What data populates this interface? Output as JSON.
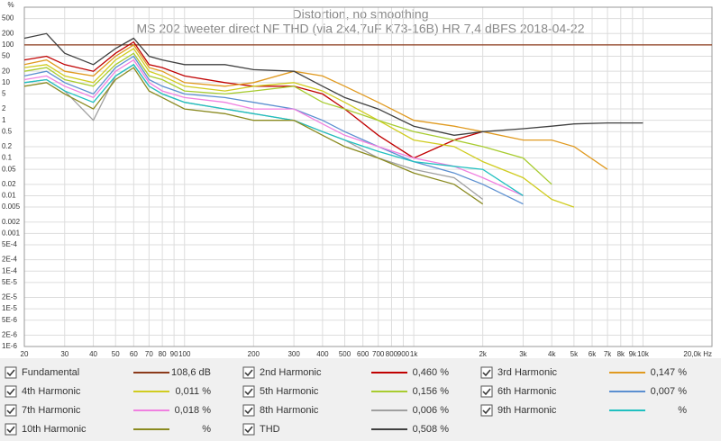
{
  "chart_data": {
    "type": "line",
    "log_x": true,
    "log_y": true,
    "grid": true,
    "title": "Distortion, no smoothing",
    "subtitle": "MS 202 tweeter direct NF THD (via 2x4,7uF K73-16B) HR 7,4 dBFS 2018-04-22",
    "y_label": "%",
    "xlim": [
      20,
      20000
    ],
    "ylim": [
      1e-06,
      1000
    ],
    "xticks": [
      20,
      30,
      40,
      50,
      60,
      70,
      80,
      90,
      100,
      200,
      300,
      400,
      500,
      600,
      700,
      800,
      900,
      {
        "value": 1000,
        "label": "1k"
      },
      {
        "value": 2000,
        "label": "2k"
      },
      {
        "value": 3000,
        "label": "3k"
      },
      {
        "value": 4000,
        "label": "4k"
      },
      {
        "value": 5000,
        "label": "5k"
      },
      {
        "value": 6000,
        "label": "6k"
      },
      {
        "value": 7000,
        "label": "7k"
      },
      {
        "value": 8000,
        "label": "8k"
      },
      {
        "value": 9000,
        "label": "9k"
      },
      {
        "value": 10000,
        "label": "10k"
      },
      {
        "value": 20000,
        "label": "20,0k Hz"
      }
    ],
    "yticks": [
      500,
      200,
      100,
      50,
      20,
      10,
      5,
      2,
      1,
      0.5,
      0.2,
      0.1,
      0.05,
      0.02,
      0.01,
      0.005,
      0.002,
      0.001,
      {
        "value": 0.0005,
        "label": "5E-4"
      },
      {
        "value": 0.0002,
        "label": "2E-4"
      },
      {
        "value": 0.0001,
        "label": "1E-4"
      },
      {
        "value": 5e-05,
        "label": "5E-5"
      },
      {
        "value": 2e-05,
        "label": "2E-5"
      },
      {
        "value": 1e-05,
        "label": "1E-5"
      },
      {
        "value": 5e-06,
        "label": "5E-6"
      },
      {
        "value": 2e-06,
        "label": "2E-6"
      },
      {
        "value": 1e-06,
        "label": "1E-6"
      }
    ],
    "x": [
      20,
      25,
      30,
      40,
      50,
      60,
      70,
      80,
      100,
      150,
      200,
      300,
      400,
      500,
      700,
      1000,
      1500,
      2000,
      3000,
      4000,
      5000,
      7000,
      10000,
      20000
    ],
    "series": [
      {
        "name": "Fundamental",
        "color": "#8b3a1a",
        "legend_value": "108,6 dB",
        "values": [
          100,
          100,
          100,
          100,
          100,
          100,
          100,
          100,
          100,
          100,
          100,
          100,
          100,
          100,
          100,
          100,
          100,
          100,
          100,
          100,
          100,
          100,
          100,
          100
        ]
      },
      {
        "name": "2nd Harmonic",
        "color": "#c00000",
        "legend_value": "0,460 %",
        "values": [
          40,
          50,
          30,
          20,
          60,
          120,
          30,
          25,
          15,
          10,
          8,
          8,
          5,
          2,
          0.4,
          0.1,
          0.3,
          0.5,
          null,
          null,
          null,
          null,
          null,
          null
        ]
      },
      {
        "name": "3rd Harmonic",
        "color": "#e09a20",
        "legend_value": "0,147 %",
        "values": [
          30,
          40,
          20,
          15,
          50,
          100,
          25,
          20,
          10,
          8,
          10,
          20,
          15,
          8,
          3,
          1,
          0.7,
          0.5,
          0.3,
          0.3,
          0.2,
          0.05,
          null,
          null
        ]
      },
      {
        "name": "4th Harmonic",
        "color": "#d0cc20",
        "legend_value": "0,011 %",
        "values": [
          25,
          30,
          15,
          10,
          40,
          80,
          20,
          15,
          8,
          6,
          8,
          10,
          6,
          3,
          1,
          0.3,
          0.2,
          0.08,
          0.03,
          0.008,
          0.005,
          null,
          null,
          null
        ]
      },
      {
        "name": "5th Harmonic",
        "color": "#a8cc30",
        "legend_value": "0,156 %",
        "values": [
          20,
          25,
          12,
          8,
          30,
          60,
          15,
          12,
          6,
          5,
          6,
          8,
          3,
          2,
          1,
          0.5,
          0.3,
          0.2,
          0.1,
          0.02,
          null,
          null,
          null,
          null
        ]
      },
      {
        "name": "6th Harmonic",
        "color": "#5b8fd0",
        "legend_value": "0,007 %",
        "values": [
          15,
          20,
          10,
          5,
          25,
          50,
          12,
          8,
          5,
          4,
          3,
          2,
          1,
          0.5,
          0.2,
          0.08,
          0.04,
          0.02,
          0.006,
          null,
          null,
          null,
          null,
          null
        ]
      },
      {
        "name": "7th Harmonic",
        "color": "#f080e0",
        "legend_value": "0,018 %",
        "values": [
          12,
          15,
          8,
          4,
          20,
          40,
          10,
          6,
          4,
          3,
          2,
          2,
          0.8,
          0.4,
          0.2,
          0.1,
          0.06,
          0.03,
          0.01,
          null,
          null,
          null,
          null,
          null
        ]
      },
      {
        "name": "8th Harmonic",
        "color": "#a0a0a0",
        "legend_value": "0,006 %",
        "values": [
          10,
          12,
          6,
          1,
          15,
          30,
          8,
          5,
          3,
          2,
          1.5,
          1,
          0.5,
          0.3,
          0.1,
          0.05,
          0.03,
          0.008,
          null,
          null,
          null,
          null,
          null,
          null
        ]
      },
      {
        "name": "9th Harmonic",
        "color": "#20c0c0",
        "legend_value": "%",
        "values": [
          10,
          12,
          6,
          3,
          15,
          30,
          8,
          5,
          3,
          2,
          1.5,
          1,
          0.5,
          0.3,
          0.15,
          0.08,
          0.06,
          0.05,
          0.01,
          null,
          null,
          null,
          null,
          null
        ]
      },
      {
        "name": "10th Harmonic",
        "color": "#8a8a20",
        "legend_value": "%",
        "values": [
          8,
          10,
          5,
          2,
          12,
          25,
          6,
          4,
          2,
          1.5,
          1,
          1,
          0.4,
          0.2,
          0.1,
          0.04,
          0.02,
          0.006,
          null,
          null,
          null,
          null,
          null,
          null
        ]
      },
      {
        "name": "THD",
        "color": "#404040",
        "legend_value": "0,508 %",
        "values": [
          150,
          200,
          60,
          30,
          80,
          150,
          50,
          40,
          30,
          30,
          22,
          20,
          8,
          4,
          2,
          0.7,
          0.4,
          0.5,
          0.6,
          0.7,
          0.8,
          0.85,
          0.85,
          null
        ]
      }
    ]
  }
}
